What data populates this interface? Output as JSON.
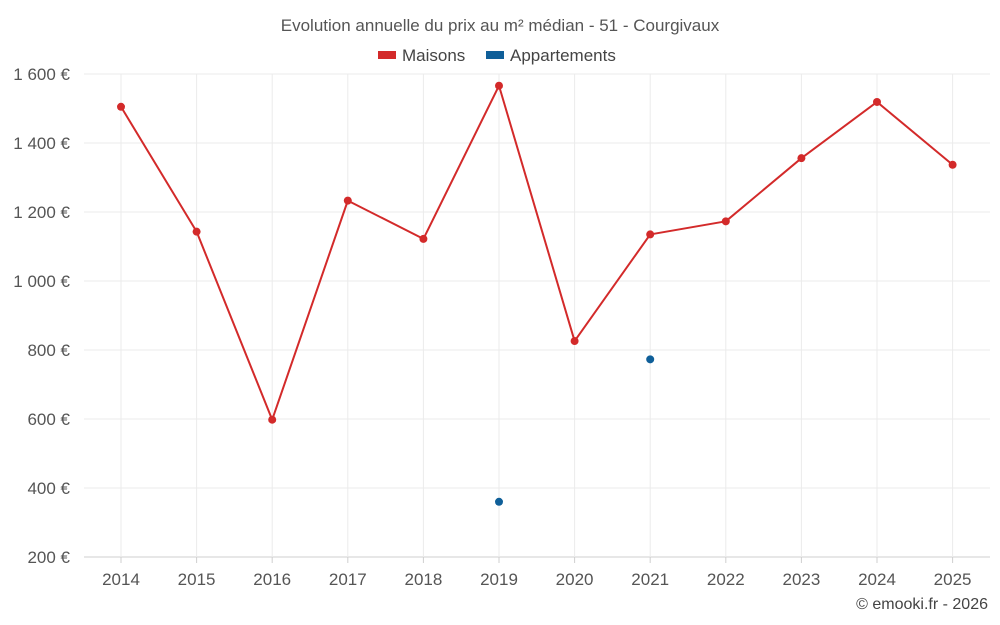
{
  "chart_data": {
    "type": "line",
    "title": "Evolution annuelle du prix au m² médian - 51 - Courgivaux",
    "categories": [
      "2014",
      "2015",
      "2016",
      "2017",
      "2018",
      "2019",
      "2020",
      "2021",
      "2022",
      "2023",
      "2024",
      "2025"
    ],
    "series": [
      {
        "name": "Maisons",
        "color": "#d32a2a",
        "values": [
          1505,
          1143,
          598,
          1233,
          1122,
          1566,
          826,
          1135,
          1173,
          1356,
          1519,
          1337
        ]
      },
      {
        "name": "Appartements",
        "color": "#0f5f99",
        "values": [
          null,
          null,
          null,
          null,
          null,
          360,
          null,
          773,
          null,
          null,
          null,
          null
        ]
      }
    ],
    "ylim": [
      200,
      1600
    ],
    "yticks": [
      200,
      400,
      600,
      800,
      1000,
      1200,
      1400,
      1600
    ],
    "ytick_labels": [
      "200 €",
      "400 €",
      "600 €",
      "800 €",
      "1 000 €",
      "1 200 €",
      "1 400 €",
      "1 600 €"
    ],
    "xlabel": "",
    "ylabel": "",
    "grid": true,
    "legend_position": "top-center"
  },
  "credit": "© emooki.fr - 2026"
}
